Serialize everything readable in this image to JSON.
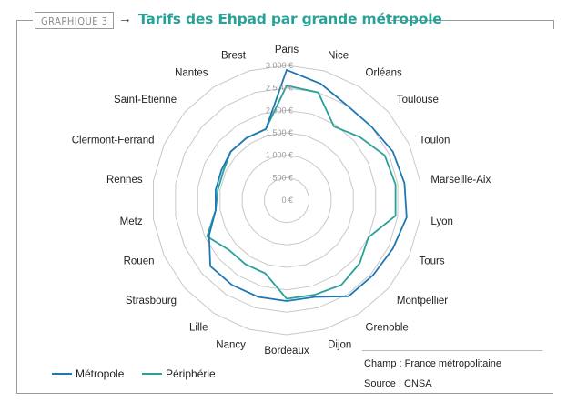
{
  "badge": "GRAPHIQUE 3",
  "arrow": "→",
  "title": "Tarifs des Ehpad par grande métropole",
  "colors": {
    "metropole": "#1f77b4",
    "peripherie": "#2aa198",
    "grid": "#c8c8c8"
  },
  "chart_data": {
    "type": "radar",
    "title": "Tarifs des Ehpad par grande métropole",
    "categories": [
      "Paris",
      "Nice",
      "Orléans",
      "Toulouse",
      "Toulon",
      "Marseille-Aix",
      "Lyon",
      "Tours",
      "Montpellier",
      "Grenoble",
      "Dijon",
      "Bordeaux",
      "Nancy",
      "Lille",
      "Strasbourg",
      "Rouen",
      "Metz",
      "Rennes",
      "Clermont-Ferrand",
      "Saint-Etienne",
      "Nantes",
      "Brest"
    ],
    "radial_ticks": [
      "0 €",
      "500 €",
      "1 000 €",
      "1 500 €",
      "2 000 €",
      "2 500 €",
      "3 000 €"
    ],
    "rlim": [
      0,
      3000
    ],
    "series": [
      {
        "name": "Métropole",
        "values": [
          2900,
          2700,
          2500,
          2500,
          2600,
          2650,
          2700,
          2600,
          2550,
          2550,
          2250,
          2250,
          2250,
          2250,
          2250,
          1900,
          1600,
          1600,
          1600,
          1650,
          1650,
          1650
        ]
      },
      {
        "name": "Périphérie",
        "values": [
          2550,
          2500,
          1950,
          2150,
          2400,
          2450,
          2450,
          2000,
          2150,
          2250,
          2200,
          2200,
          1700,
          1700,
          1700,
          1950,
          1600,
          1550,
          1550,
          1650,
          1650,
          1650
        ]
      }
    ]
  },
  "legend": {
    "metropole": "Métropole",
    "peripherie": "Périphérie"
  },
  "notes": {
    "champ": "Champ : France métropolitaine",
    "source": "Source : CNSA"
  }
}
